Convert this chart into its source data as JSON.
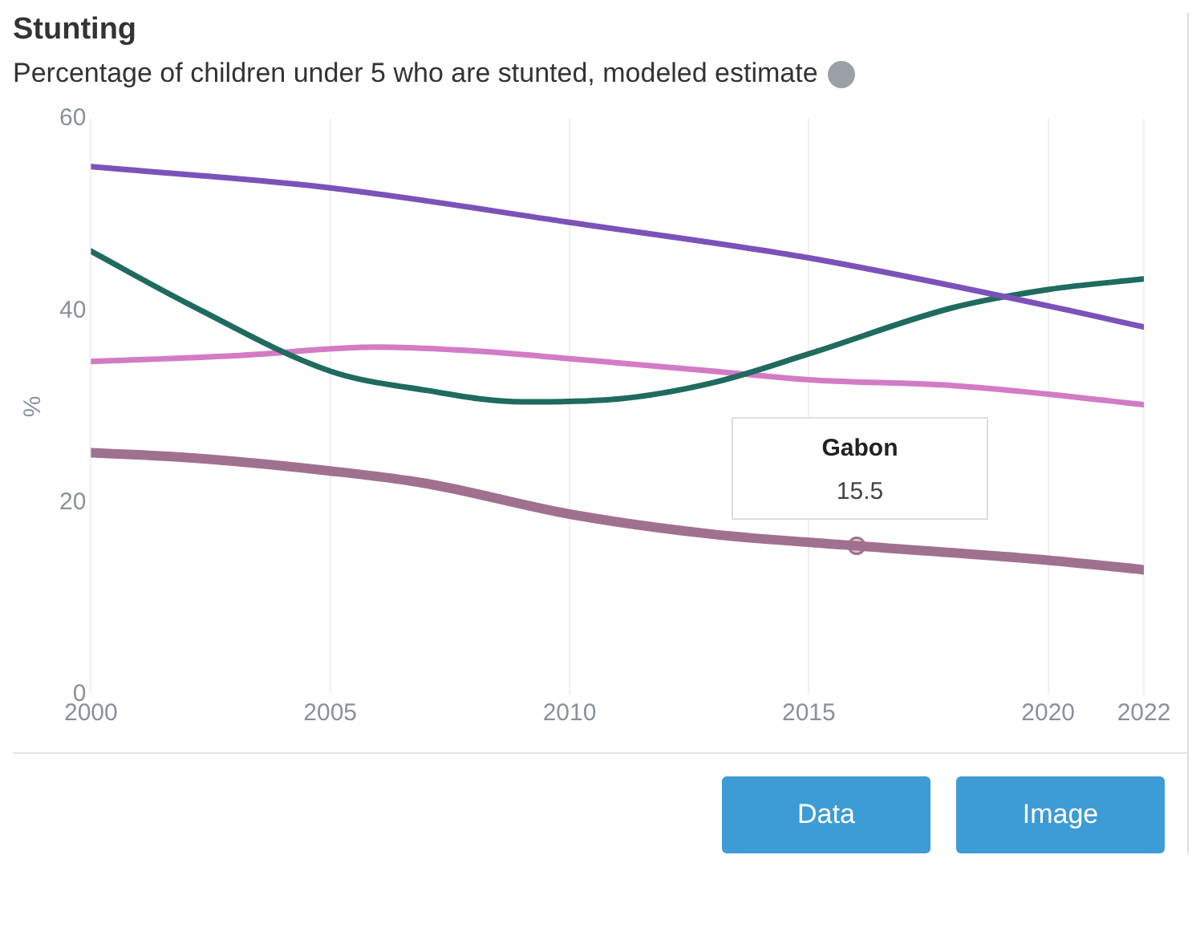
{
  "chart_data": {
    "type": "line",
    "title": "Stunting",
    "subtitle": "Percentage of children under 5 who are stunted, modeled estimate",
    "ylabel": "%",
    "xlim": [
      2000,
      2022
    ],
    "xticks": [
      2000,
      2005,
      2010,
      2015,
      2020,
      2022
    ],
    "ylim": [
      0,
      60
    ],
    "yticks": [
      0,
      20,
      40,
      60
    ],
    "grid": "x",
    "legend": false,
    "marker": "none",
    "line_style": "solid",
    "series": [
      {
        "color": "#7b52b9",
        "x": [
          2000,
          2005,
          2010,
          2015,
          2020,
          2022
        ],
        "values": [
          55,
          52.8,
          49.2,
          45.5,
          40.5,
          38.3
        ]
      },
      {
        "color": "#1f6b5e",
        "x": [
          2000,
          2002,
          2005,
          2007,
          2009,
          2011,
          2013,
          2015,
          2018,
          2020,
          2022
        ],
        "values": [
          46.2,
          40.8,
          33.7,
          31.7,
          30.5,
          30.8,
          32.5,
          35.5,
          40.3,
          42.2,
          43.3
        ]
      },
      {
        "color": "#d37bc4",
        "x": [
          2000,
          2003,
          2006,
          2008,
          2010,
          2013,
          2015,
          2018,
          2020,
          2022
        ],
        "values": [
          34.7,
          35.3,
          36.2,
          35.8,
          35,
          33.7,
          32.8,
          32.2,
          31.3,
          30.2
        ]
      },
      {
        "name": "Gabon",
        "color": "#a0718e",
        "x": [
          2000,
          2002,
          2005,
          2007,
          2010,
          2013,
          2016,
          2020,
          2022
        ],
        "values": [
          25.2,
          24.7,
          23.3,
          22,
          18.8,
          16.7,
          15.5,
          14,
          13
        ]
      }
    ],
    "annotations": [
      {
        "text": "15.5",
        "x": 2016,
        "y": 15.5
      },
      "Data",
      "Image"
    ]
  }
}
